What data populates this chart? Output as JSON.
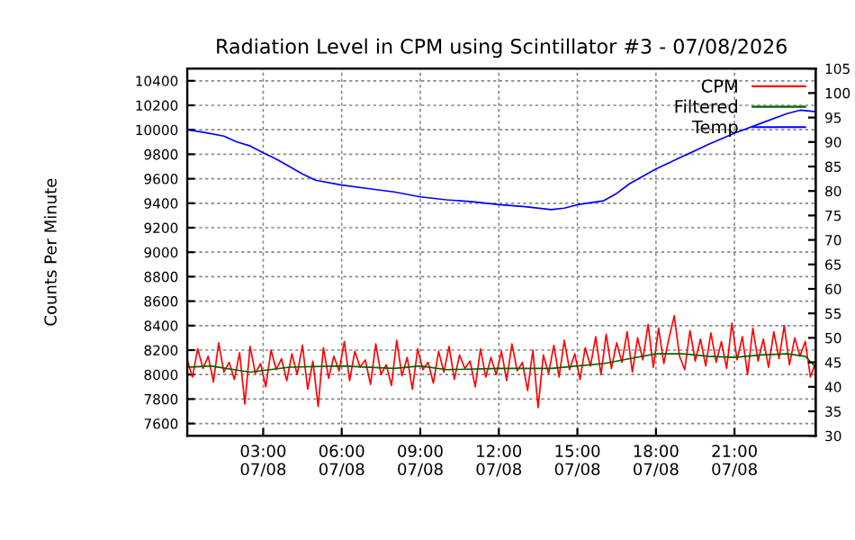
{
  "chart_data": {
    "type": "line",
    "title": "Radiation Level in CPM using Scintillator #3 - 07/08/2026",
    "ylabel": "Counts Per Minute",
    "xlim": [
      "2026-07-08T00:06",
      "2026-07-09T00:06"
    ],
    "xticks": [
      {
        "value": "2026-07-08T03:00",
        "label": "03:00\n07/08"
      },
      {
        "value": "2026-07-08T06:00",
        "label": "06:00\n07/08"
      },
      {
        "value": "2026-07-08T09:00",
        "label": "09:00\n07/08"
      },
      {
        "value": "2026-07-08T12:00",
        "label": "12:00\n07/08"
      },
      {
        "value": "2026-07-08T15:00",
        "label": "15:00\n07/08"
      },
      {
        "value": "2026-07-08T18:00",
        "label": "18:00\n07/08"
      },
      {
        "value": "2026-07-08T21:00",
        "label": "21:00\n07/08"
      }
    ],
    "ylim": [
      7500,
      10500
    ],
    "yticks": [
      7600,
      7800,
      8000,
      8200,
      8400,
      8600,
      8800,
      9000,
      9200,
      9400,
      9600,
      9800,
      10000,
      10200,
      10400
    ],
    "y2lim": [
      30,
      105
    ],
    "y2ticks": [
      30,
      35,
      40,
      45,
      50,
      55,
      60,
      65,
      70,
      75,
      80,
      85,
      90,
      95,
      100,
      105
    ],
    "grid": true,
    "legend": "top right",
    "line_style": "solid",
    "series": [
      {
        "name": "CPM",
        "color": "#ff0000",
        "x": [
          "2026-07-08T00:06",
          "2026-07-08T00:18",
          "2026-07-08T00:30",
          "2026-07-08T00:42",
          "2026-07-08T00:54",
          "2026-07-08T01:06",
          "2026-07-08T01:18",
          "2026-07-08T01:30",
          "2026-07-08T01:42",
          "2026-07-08T01:54",
          "2026-07-08T02:06",
          "2026-07-08T02:18",
          "2026-07-08T02:30",
          "2026-07-08T02:42",
          "2026-07-08T02:54",
          "2026-07-08T03:06",
          "2026-07-08T03:18",
          "2026-07-08T03:30",
          "2026-07-08T03:42",
          "2026-07-08T03:54",
          "2026-07-08T04:06",
          "2026-07-08T04:18",
          "2026-07-08T04:30",
          "2026-07-08T04:42",
          "2026-07-08T04:54",
          "2026-07-08T05:06",
          "2026-07-08T05:18",
          "2026-07-08T05:30",
          "2026-07-08T05:42",
          "2026-07-08T05:54",
          "2026-07-08T06:06",
          "2026-07-08T06:18",
          "2026-07-08T06:30",
          "2026-07-08T06:42",
          "2026-07-08T06:54",
          "2026-07-08T07:06",
          "2026-07-08T07:18",
          "2026-07-08T07:30",
          "2026-07-08T07:42",
          "2026-07-08T07:54",
          "2026-07-08T08:06",
          "2026-07-08T08:18",
          "2026-07-08T08:30",
          "2026-07-08T08:42",
          "2026-07-08T08:54",
          "2026-07-08T09:06",
          "2026-07-08T09:18",
          "2026-07-08T09:30",
          "2026-07-08T09:42",
          "2026-07-08T09:54",
          "2026-07-08T10:06",
          "2026-07-08T10:18",
          "2026-07-08T10:30",
          "2026-07-08T10:42",
          "2026-07-08T10:54",
          "2026-07-08T11:06",
          "2026-07-08T11:18",
          "2026-07-08T11:30",
          "2026-07-08T11:42",
          "2026-07-08T11:54",
          "2026-07-08T12:06",
          "2026-07-08T12:18",
          "2026-07-08T12:30",
          "2026-07-08T12:42",
          "2026-07-08T12:54",
          "2026-07-08T13:06",
          "2026-07-08T13:18",
          "2026-07-08T13:30",
          "2026-07-08T13:42",
          "2026-07-08T13:54",
          "2026-07-08T14:06",
          "2026-07-08T14:18",
          "2026-07-08T14:30",
          "2026-07-08T14:42",
          "2026-07-08T14:54",
          "2026-07-08T15:06",
          "2026-07-08T15:18",
          "2026-07-08T15:30",
          "2026-07-08T15:42",
          "2026-07-08T15:54",
          "2026-07-08T16:06",
          "2026-07-08T16:18",
          "2026-07-08T16:30",
          "2026-07-08T16:42",
          "2026-07-08T16:54",
          "2026-07-08T17:06",
          "2026-07-08T17:18",
          "2026-07-08T17:30",
          "2026-07-08T17:42",
          "2026-07-08T17:54",
          "2026-07-08T18:06",
          "2026-07-08T18:18",
          "2026-07-08T18:30",
          "2026-07-08T18:42",
          "2026-07-08T18:54",
          "2026-07-08T19:06",
          "2026-07-08T19:18",
          "2026-07-08T19:30",
          "2026-07-08T19:42",
          "2026-07-08T19:54",
          "2026-07-08T20:06",
          "2026-07-08T20:18",
          "2026-07-08T20:30",
          "2026-07-08T20:42",
          "2026-07-08T20:54",
          "2026-07-08T21:06",
          "2026-07-08T21:18",
          "2026-07-08T21:30",
          "2026-07-08T21:42",
          "2026-07-08T21:54",
          "2026-07-08T22:06",
          "2026-07-08T22:18",
          "2026-07-08T22:30",
          "2026-07-08T22:42",
          "2026-07-08T22:54",
          "2026-07-08T23:06",
          "2026-07-08T23:18",
          "2026-07-08T23:30",
          "2026-07-08T23:42",
          "2026-07-08T23:54",
          "2026-07-09T00:06"
        ],
        "values": [
          8120,
          7980,
          8210,
          8050,
          8150,
          7940,
          8260,
          8020,
          8100,
          7960,
          8180,
          7760,
          8230,
          8010,
          8090,
          7900,
          8200,
          8040,
          8130,
          7950,
          8170,
          8000,
          8240,
          7880,
          8110,
          7740,
          8220,
          7970,
          8150,
          8030,
          8270,
          7950,
          8190,
          8060,
          8120,
          7920,
          8250,
          8000,
          8080,
          7910,
          8280,
          7990,
          8140,
          7880,
          8210,
          8040,
          8100,
          7930,
          8190,
          8020,
          8230,
          7960,
          8160,
          8050,
          8110,
          7900,
          8210,
          7980,
          8140,
          8000,
          8190,
          7950,
          8250,
          8030,
          8100,
          7870,
          8200,
          7730,
          8160,
          8010,
          8240,
          7980,
          8280,
          8040,
          8170,
          7960,
          8220,
          8070,
          8310,
          8000,
          8330,
          8050,
          8260,
          8100,
          8350,
          8020,
          8300,
          8120,
          8410,
          8060,
          8380,
          8090,
          8300,
          8480,
          8150,
          8040,
          8360,
          8110,
          8290,
          8070,
          8340,
          8100,
          8270,
          8050,
          8420,
          8120,
          8310,
          8000,
          8380,
          8110,
          8290,
          8060,
          8350,
          8130,
          8400,
          8080,
          8300,
          8150,
          8270,
          7980,
          8100
        ]
      },
      {
        "name": "Filtered",
        "color": "#006400",
        "x": [
          "2026-07-08T00:06",
          "2026-07-08T01:00",
          "2026-07-08T02:30",
          "2026-07-08T04:00",
          "2026-07-08T06:00",
          "2026-07-08T08:00",
          "2026-07-08T09:00",
          "2026-07-08T10:00",
          "2026-07-08T12:00",
          "2026-07-08T14:00",
          "2026-07-08T15:00",
          "2026-07-08T16:00",
          "2026-07-08T17:00",
          "2026-07-08T18:00",
          "2026-07-08T19:00",
          "2026-07-08T20:00",
          "2026-07-08T21:00",
          "2026-07-08T22:00",
          "2026-07-08T23:00",
          "2026-07-08T23:42",
          "2026-07-09T00:06"
        ],
        "values": [
          8060,
          8070,
          8020,
          8060,
          8070,
          8050,
          8070,
          8040,
          8050,
          8050,
          8070,
          8090,
          8130,
          8170,
          8170,
          8150,
          8140,
          8160,
          8170,
          8150,
          8060
        ]
      },
      {
        "name": "Temp",
        "color": "#0000ff",
        "axis": "y2",
        "x": [
          "2026-07-08T00:06",
          "2026-07-08T00:42",
          "2026-07-08T01:30",
          "2026-07-08T02:00",
          "2026-07-08T02:30",
          "2026-07-08T03:00",
          "2026-07-08T03:30",
          "2026-07-08T04:00",
          "2026-07-08T04:30",
          "2026-07-08T05:00",
          "2026-07-08T06:00",
          "2026-07-08T07:00",
          "2026-07-08T08:00",
          "2026-07-08T09:00",
          "2026-07-08T10:00",
          "2026-07-08T11:00",
          "2026-07-08T12:00",
          "2026-07-08T13:00",
          "2026-07-08T14:00",
          "2026-07-08T14:30",
          "2026-07-08T15:00",
          "2026-07-08T16:00",
          "2026-07-08T16:30",
          "2026-07-08T17:00",
          "2026-07-08T18:00",
          "2026-07-08T19:00",
          "2026-07-08T20:00",
          "2026-07-08T21:00",
          "2026-07-08T22:00",
          "2026-07-08T23:00",
          "2026-07-08T23:30",
          "2026-07-09T00:06"
        ],
        "values": [
          92.5,
          92.0,
          91.2,
          90.0,
          89.2,
          87.8,
          86.5,
          85.0,
          83.5,
          82.2,
          81.2,
          80.5,
          79.8,
          78.8,
          78.2,
          77.8,
          77.2,
          76.8,
          76.2,
          76.5,
          77.2,
          78.0,
          79.5,
          81.5,
          84.5,
          87.0,
          89.5,
          91.8,
          93.8,
          95.8,
          96.5,
          96.2
        ]
      }
    ]
  }
}
